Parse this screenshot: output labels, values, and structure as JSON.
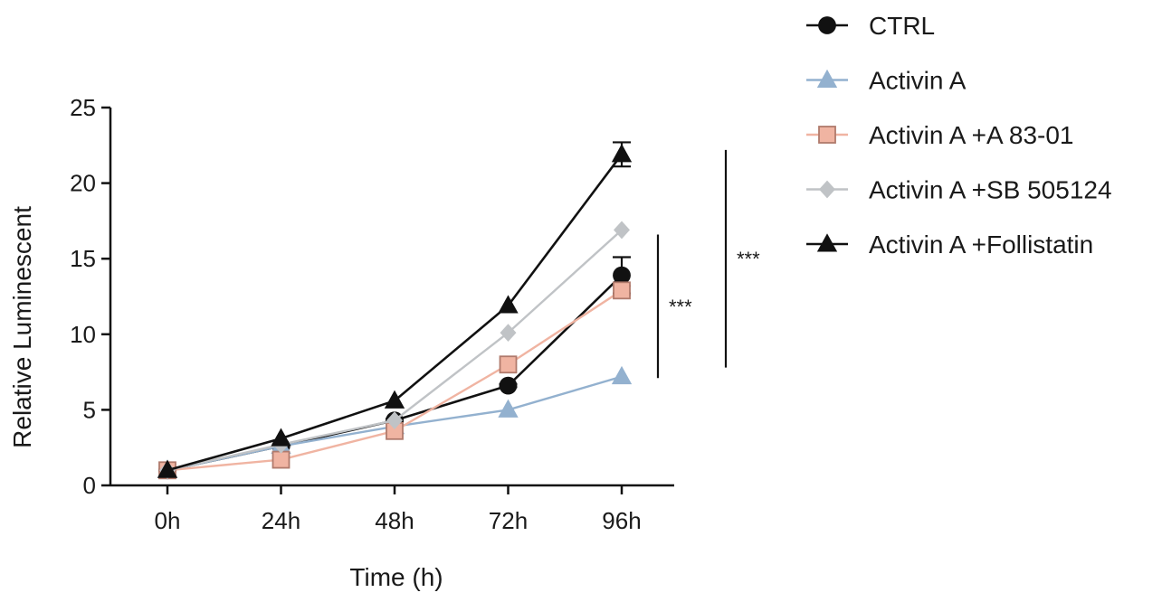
{
  "chart_data": {
    "type": "line",
    "xlabel": "Time (h)",
    "ylabel": "Relative Luminescent",
    "categories": [
      "0h",
      "24h",
      "48h",
      "72h",
      "96h"
    ],
    "ylim": [
      0,
      25
    ],
    "yticks": [
      "0",
      "5",
      "10",
      "15",
      "20",
      "25"
    ],
    "grid": false,
    "legend": "right",
    "series": [
      {
        "name": "CTRL",
        "values": [
          1.0,
          2.6,
          4.3,
          6.6,
          13.9
        ],
        "errors": [
          0,
          0.1,
          0.1,
          0.1,
          1.2
        ],
        "color": "#111111",
        "marker": "circle"
      },
      {
        "name": "Activin A",
        "values": [
          1.0,
          2.6,
          3.9,
          5.0,
          7.2
        ],
        "errors": [
          0,
          0,
          0,
          0,
          0
        ],
        "color": "#93b1cf",
        "marker": "triangle"
      },
      {
        "name": "Activin A +A 83-01",
        "values": [
          1.0,
          1.7,
          3.6,
          8.0,
          12.9
        ],
        "errors": [
          0,
          0,
          0,
          0,
          0.3
        ],
        "color": "#f0b4a2",
        "marker": "square"
      },
      {
        "name": "Activin A +SB 505124",
        "values": [
          1.0,
          2.7,
          4.3,
          10.1,
          16.9
        ],
        "errors": [
          0,
          0,
          0,
          0,
          0
        ],
        "color": "#c0c3c6",
        "marker": "diamond"
      },
      {
        "name": "Activin A +Follistatin",
        "values": [
          1.0,
          3.1,
          5.6,
          11.9,
          21.9
        ],
        "errors": [
          0,
          0,
          0,
          0,
          0.8
        ],
        "color": "#111111",
        "marker": "triangle"
      }
    ],
    "annotations": [
      {
        "text": "***",
        "y_from": 7.1,
        "y_to": 16.6
      },
      {
        "text": "***",
        "y_from": 7.8,
        "y_to": 22.2
      }
    ]
  }
}
